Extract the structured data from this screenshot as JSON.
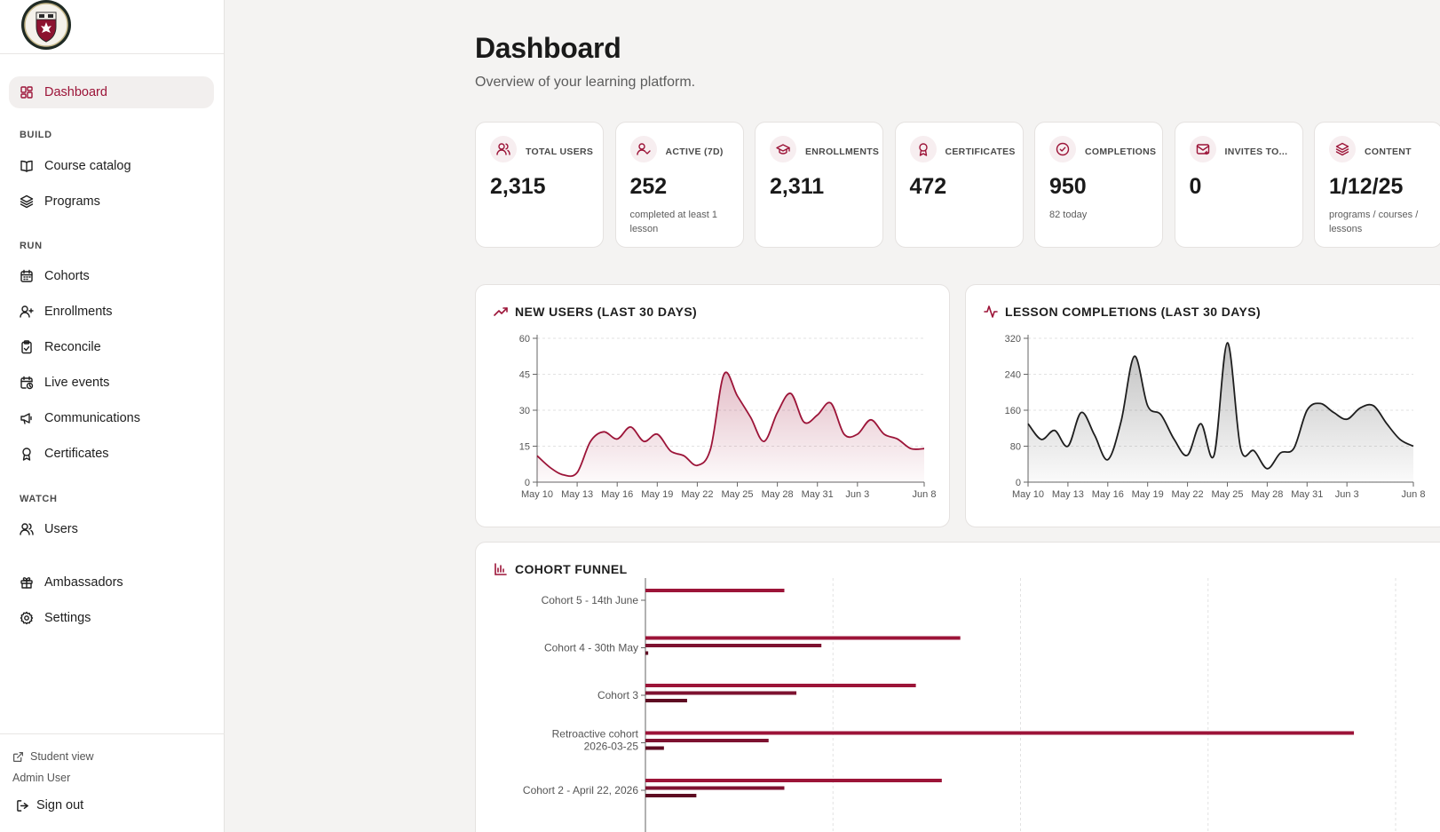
{
  "sidebar": {
    "nav": [
      {
        "label": "Dashboard",
        "icon": "dashboard-icon",
        "active": true
      },
      {
        "section": "BUILD"
      },
      {
        "label": "Course catalog",
        "icon": "book-open-icon"
      },
      {
        "label": "Programs",
        "icon": "layers-icon"
      },
      {
        "section": "RUN"
      },
      {
        "label": "Cohorts",
        "icon": "calendar-icon"
      },
      {
        "label": "Enrollments",
        "icon": "user-plus-icon"
      },
      {
        "label": "Reconcile",
        "icon": "clipboard-check-icon"
      },
      {
        "label": "Live events",
        "icon": "calendar-clock-icon"
      },
      {
        "label": "Communications",
        "icon": "megaphone-icon"
      },
      {
        "label": "Certificates",
        "icon": "award-icon"
      },
      {
        "section": "WATCH"
      },
      {
        "label": "Users",
        "icon": "users-icon"
      },
      {
        "label": "Ambassadors",
        "icon": "gift-icon"
      },
      {
        "label": "Settings",
        "icon": "gear-icon"
      }
    ],
    "student_view": "Student view",
    "admin_user": "Admin User",
    "sign_out": "Sign out"
  },
  "header": {
    "title": "Dashboard",
    "subtitle": "Overview of your learning platform."
  },
  "stats": [
    {
      "label": "TOTAL USERS",
      "value": "2,315",
      "note": "",
      "icon": "users-icon"
    },
    {
      "label": "ACTIVE (7D)",
      "value": "252",
      "note": "completed at least 1 lesson",
      "icon": "user-check-icon"
    },
    {
      "label": "ENROLLMENTS",
      "value": "2,311",
      "note": "",
      "icon": "graduation-cap-icon"
    },
    {
      "label": "CERTIFICATES",
      "value": "472",
      "note": "",
      "icon": "award-icon"
    },
    {
      "label": "COMPLETIONS",
      "value": "950",
      "note": "82 today",
      "icon": "check-circle-icon"
    },
    {
      "label": "INVITES TO...",
      "value": "0",
      "note": "",
      "icon": "mail-icon"
    },
    {
      "label": "CONTENT",
      "value": "1/12/25",
      "note": "programs / courses / lessons",
      "icon": "layers-icon"
    }
  ],
  "colors": {
    "accent": "#9c1438",
    "dark_bar": "#6e0f27"
  },
  "chart_data": [
    {
      "type": "area",
      "title": "NEW USERS (LAST 30 DAYS)",
      "x": [
        "May 10",
        "May 11",
        "May 12",
        "May 13",
        "May 14",
        "May 15",
        "May 16",
        "May 17",
        "May 18",
        "May 19",
        "May 20",
        "May 21",
        "May 22",
        "May 23",
        "May 24",
        "May 25",
        "May 26",
        "May 27",
        "May 28",
        "May 29",
        "May 30",
        "May 31",
        "Jun 1",
        "Jun 2",
        "Jun 3",
        "Jun 4",
        "Jun 5",
        "Jun 6",
        "Jun 7",
        "Jun 8"
      ],
      "xticks": [
        "May 10",
        "May 13",
        "May 16",
        "May 19",
        "May 22",
        "May 25",
        "May 28",
        "May 31",
        "Jun 3",
        "Jun 8"
      ],
      "values": [
        11,
        6,
        3,
        4,
        17,
        21,
        18,
        23,
        17,
        20,
        13,
        11,
        7,
        14,
        45,
        36,
        27,
        17,
        29,
        37,
        25,
        28,
        33,
        20,
        20,
        26,
        20,
        18,
        14,
        14
      ],
      "ylim": [
        0,
        60
      ],
      "yticks": [
        0,
        15,
        30,
        45,
        60
      ],
      "color": "#9c1438",
      "grid": true
    },
    {
      "type": "area",
      "title": "LESSON COMPLETIONS (LAST 30 DAYS)",
      "x": [
        "May 10",
        "May 11",
        "May 12",
        "May 13",
        "May 14",
        "May 15",
        "May 16",
        "May 17",
        "May 18",
        "May 19",
        "May 20",
        "May 21",
        "May 22",
        "May 23",
        "May 24",
        "May 25",
        "May 26",
        "May 27",
        "May 28",
        "May 29",
        "May 30",
        "May 31",
        "Jun 1",
        "Jun 2",
        "Jun 3",
        "Jun 4",
        "Jun 5",
        "Jun 6",
        "Jun 7",
        "Jun 8"
      ],
      "xticks": [
        "May 10",
        "May 13",
        "May 16",
        "May 19",
        "May 22",
        "May 25",
        "May 28",
        "May 31",
        "Jun 3",
        "Jun 8"
      ],
      "values": [
        130,
        95,
        115,
        80,
        155,
        105,
        50,
        135,
        280,
        170,
        150,
        95,
        60,
        130,
        60,
        310,
        75,
        70,
        30,
        65,
        75,
        160,
        175,
        155,
        140,
        165,
        170,
        130,
        95,
        80
      ],
      "ylim": [
        0,
        320
      ],
      "yticks": [
        0,
        80,
        160,
        240,
        320
      ],
      "color": "#1e1e1e",
      "grid": true
    },
    {
      "type": "bar",
      "title": "COHORT FUNNEL",
      "orientation": "horizontal",
      "categories": [
        "Cohort 5 - 14th June",
        "Cohort 4 - 30th May",
        "Cohort 3",
        "Retroactive cohort 2026-03-25",
        "Cohort 2 - April 22, 2026"
      ],
      "series": [
        {
          "values": [
            150,
            340,
            292,
            765,
            320
          ],
          "color": "#9c1438"
        },
        {
          "values": [
            0,
            190,
            163,
            133,
            150
          ],
          "color": "#7d1230"
        },
        {
          "values": [
            0,
            3,
            45,
            20,
            55
          ],
          "color": "#5e0c22"
        }
      ],
      "xlim": [
        0,
        810
      ],
      "grid": true
    }
  ]
}
